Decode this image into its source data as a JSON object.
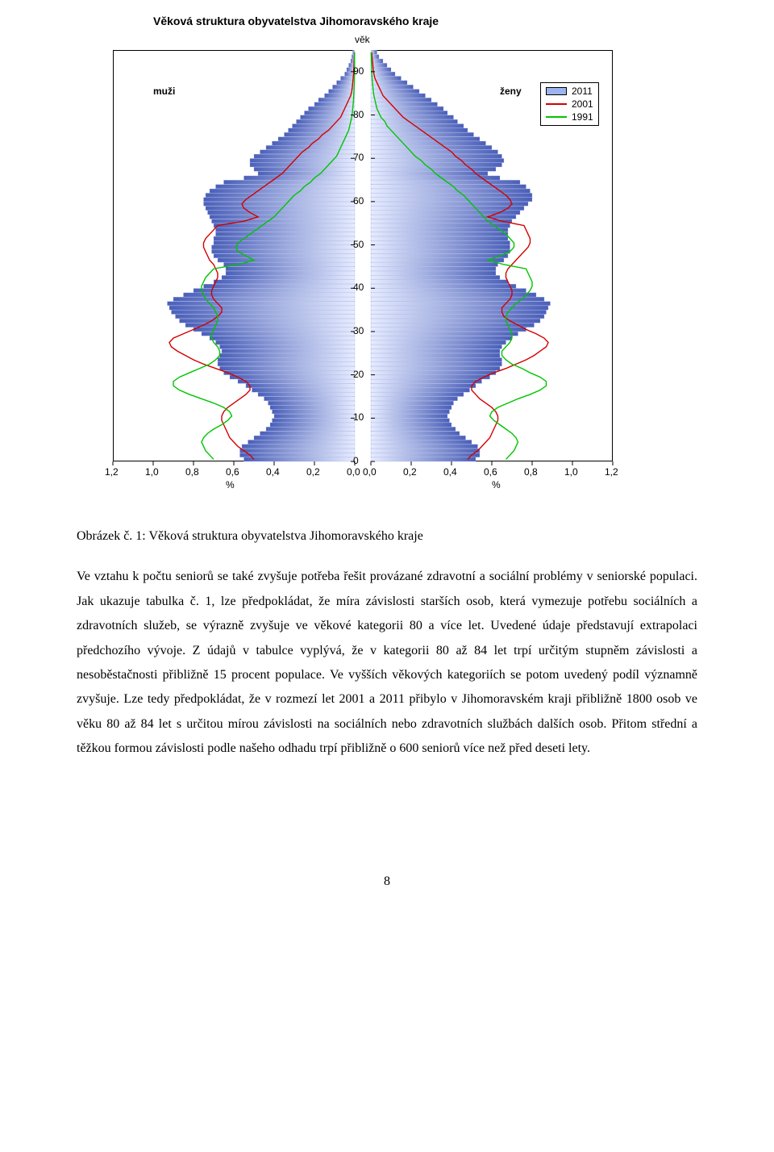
{
  "chart": {
    "type": "population-pyramid",
    "title": "Věková struktura obyvatelstva Jihomoravského kraje",
    "y_axis_label": "věk",
    "x_axis_label": "%",
    "left_label": "muži",
    "right_label": "ženy",
    "frame_color": "#000000",
    "background_color": "#ffffff",
    "bar_fill": "#4a5fb8",
    "bar_stroke": "#a7b4e6",
    "grad_light": "#e6ecff",
    "line_2001_color": "#d40000",
    "line_1991_color": "#00c400",
    "axis_font": "Arial",
    "axis_fontsize": 12,
    "title_fontsize": 14,
    "y_ticks": [
      0,
      10,
      20,
      30,
      40,
      50,
      60,
      70,
      80,
      90
    ],
    "x_ticks_left": [
      "1,2",
      "1,0",
      "0,8",
      "0,6",
      "0,4",
      "0,2",
      "0,0"
    ],
    "x_ticks_right": [
      "0,0",
      "0,2",
      "0,4",
      "0,6",
      "0,8",
      "1,0",
      "1,2"
    ],
    "xmax": 1.2,
    "age_min": 0,
    "age_max": 95,
    "line_width": 1.4,
    "legend": {
      "items": [
        {
          "label": "2011",
          "kind": "rect",
          "color": "#9bb4ef"
        },
        {
          "label": "2001",
          "kind": "line",
          "color": "#d40000"
        },
        {
          "label": "1991",
          "kind": "line",
          "color": "#00c400"
        }
      ]
    },
    "male_2011": [
      0.55,
      0.57,
      0.57,
      0.56,
      0.53,
      0.5,
      0.47,
      0.44,
      0.42,
      0.41,
      0.4,
      0.41,
      0.42,
      0.43,
      0.45,
      0.48,
      0.51,
      0.54,
      0.58,
      0.62,
      0.65,
      0.67,
      0.68,
      0.68,
      0.67,
      0.66,
      0.67,
      0.69,
      0.72,
      0.76,
      0.8,
      0.84,
      0.87,
      0.89,
      0.91,
      0.92,
      0.93,
      0.9,
      0.85,
      0.8,
      0.75,
      0.7,
      0.66,
      0.64,
      0.64,
      0.65,
      0.68,
      0.7,
      0.71,
      0.71,
      0.7,
      0.7,
      0.69,
      0.69,
      0.7,
      0.71,
      0.72,
      0.73,
      0.74,
      0.75,
      0.75,
      0.74,
      0.72,
      0.69,
      0.65,
      0.55,
      0.48,
      0.5,
      0.52,
      0.52,
      0.5,
      0.47,
      0.44,
      0.41,
      0.38,
      0.35,
      0.33,
      0.31,
      0.29,
      0.27,
      0.25,
      0.23,
      0.2,
      0.18,
      0.15,
      0.13,
      0.11,
      0.09,
      0.07,
      0.05,
      0.04,
      0.03,
      0.02,
      0.015,
      0.01
    ],
    "female_2011": [
      0.52,
      0.54,
      0.54,
      0.53,
      0.5,
      0.47,
      0.44,
      0.42,
      0.4,
      0.39,
      0.38,
      0.39,
      0.4,
      0.41,
      0.43,
      0.46,
      0.49,
      0.52,
      0.55,
      0.59,
      0.62,
      0.64,
      0.65,
      0.65,
      0.64,
      0.64,
      0.65,
      0.67,
      0.7,
      0.73,
      0.77,
      0.81,
      0.84,
      0.86,
      0.87,
      0.88,
      0.89,
      0.86,
      0.82,
      0.77,
      0.72,
      0.68,
      0.64,
      0.62,
      0.62,
      0.63,
      0.66,
      0.68,
      0.69,
      0.69,
      0.69,
      0.68,
      0.68,
      0.68,
      0.69,
      0.7,
      0.72,
      0.74,
      0.76,
      0.78,
      0.8,
      0.8,
      0.79,
      0.77,
      0.74,
      0.64,
      0.58,
      0.62,
      0.65,
      0.66,
      0.65,
      0.63,
      0.6,
      0.57,
      0.54,
      0.51,
      0.48,
      0.46,
      0.43,
      0.41,
      0.38,
      0.36,
      0.33,
      0.3,
      0.27,
      0.24,
      0.21,
      0.18,
      0.15,
      0.12,
      0.1,
      0.08,
      0.06,
      0.04,
      0.03
    ],
    "male_2001": [
      0.5,
      0.52,
      0.55,
      0.58,
      0.6,
      0.62,
      0.63,
      0.64,
      0.65,
      0.66,
      0.66,
      0.65,
      0.63,
      0.6,
      0.57,
      0.54,
      0.52,
      0.52,
      0.54,
      0.58,
      0.63,
      0.69,
      0.75,
      0.8,
      0.84,
      0.88,
      0.91,
      0.92,
      0.9,
      0.85,
      0.8,
      0.75,
      0.71,
      0.68,
      0.66,
      0.66,
      0.68,
      0.7,
      0.71,
      0.71,
      0.7,
      0.69,
      0.68,
      0.68,
      0.69,
      0.7,
      0.72,
      0.73,
      0.74,
      0.75,
      0.75,
      0.74,
      0.72,
      0.7,
      0.68,
      0.55,
      0.48,
      0.52,
      0.55,
      0.56,
      0.54,
      0.51,
      0.48,
      0.45,
      0.42,
      0.39,
      0.36,
      0.34,
      0.32,
      0.3,
      0.28,
      0.26,
      0.23,
      0.21,
      0.18,
      0.16,
      0.13,
      0.11,
      0.09,
      0.07,
      0.06,
      0.05,
      0.04,
      0.03,
      0.02,
      0.015,
      0.012,
      0.01,
      0.008,
      0.006,
      0.005,
      0.004,
      0.003,
      0.002,
      0.001
    ],
    "female_2001": [
      0.48,
      0.5,
      0.53,
      0.55,
      0.57,
      0.59,
      0.6,
      0.61,
      0.62,
      0.63,
      0.63,
      0.62,
      0.6,
      0.57,
      0.54,
      0.52,
      0.5,
      0.5,
      0.52,
      0.56,
      0.61,
      0.67,
      0.72,
      0.77,
      0.81,
      0.84,
      0.87,
      0.88,
      0.86,
      0.82,
      0.77,
      0.73,
      0.69,
      0.66,
      0.65,
      0.65,
      0.67,
      0.69,
      0.7,
      0.7,
      0.69,
      0.68,
      0.67,
      0.67,
      0.68,
      0.7,
      0.72,
      0.74,
      0.76,
      0.78,
      0.79,
      0.79,
      0.78,
      0.77,
      0.76,
      0.65,
      0.58,
      0.64,
      0.68,
      0.7,
      0.69,
      0.67,
      0.64,
      0.61,
      0.58,
      0.55,
      0.52,
      0.5,
      0.47,
      0.45,
      0.42,
      0.4,
      0.37,
      0.34,
      0.31,
      0.28,
      0.25,
      0.22,
      0.19,
      0.16,
      0.14,
      0.12,
      0.1,
      0.08,
      0.06,
      0.05,
      0.04,
      0.03,
      0.02,
      0.015,
      0.012,
      0.01,
      0.008,
      0.006,
      0.004
    ],
    "male_1991": [
      0.7,
      0.72,
      0.74,
      0.75,
      0.76,
      0.75,
      0.73,
      0.7,
      0.66,
      0.63,
      0.61,
      0.62,
      0.65,
      0.7,
      0.76,
      0.82,
      0.87,
      0.9,
      0.9,
      0.87,
      0.82,
      0.77,
      0.72,
      0.69,
      0.67,
      0.67,
      0.68,
      0.7,
      0.71,
      0.71,
      0.7,
      0.69,
      0.68,
      0.68,
      0.69,
      0.7,
      0.72,
      0.74,
      0.75,
      0.76,
      0.76,
      0.75,
      0.74,
      0.72,
      0.7,
      0.58,
      0.5,
      0.54,
      0.58,
      0.59,
      0.58,
      0.55,
      0.52,
      0.49,
      0.46,
      0.43,
      0.4,
      0.38,
      0.36,
      0.34,
      0.32,
      0.3,
      0.27,
      0.25,
      0.22,
      0.2,
      0.17,
      0.15,
      0.13,
      0.11,
      0.09,
      0.08,
      0.07,
      0.06,
      0.05,
      0.04,
      0.03,
      0.025,
      0.02,
      0.015,
      0.012,
      0.01,
      0.008,
      0.006,
      0.005,
      0.004,
      0.003,
      0.002,
      0.002,
      0.001,
      0.001,
      0.001,
      0.001,
      0.001,
      0.001
    ],
    "female_1991": [
      0.67,
      0.69,
      0.71,
      0.72,
      0.73,
      0.72,
      0.7,
      0.67,
      0.64,
      0.61,
      0.59,
      0.6,
      0.63,
      0.68,
      0.73,
      0.79,
      0.84,
      0.87,
      0.87,
      0.84,
      0.79,
      0.75,
      0.7,
      0.67,
      0.65,
      0.65,
      0.67,
      0.69,
      0.7,
      0.7,
      0.69,
      0.68,
      0.67,
      0.67,
      0.68,
      0.7,
      0.72,
      0.75,
      0.77,
      0.79,
      0.8,
      0.8,
      0.79,
      0.78,
      0.77,
      0.66,
      0.58,
      0.64,
      0.69,
      0.71,
      0.71,
      0.69,
      0.67,
      0.64,
      0.61,
      0.58,
      0.56,
      0.54,
      0.52,
      0.5,
      0.48,
      0.46,
      0.43,
      0.41,
      0.38,
      0.35,
      0.32,
      0.3,
      0.27,
      0.25,
      0.22,
      0.2,
      0.18,
      0.16,
      0.14,
      0.12,
      0.1,
      0.08,
      0.07,
      0.05,
      0.04,
      0.03,
      0.025,
      0.02,
      0.015,
      0.012,
      0.01,
      0.008,
      0.006,
      0.005,
      0.004,
      0.003,
      0.002,
      0.002,
      0.001
    ]
  },
  "caption": "Obrázek č. 1: Věková struktura obyvatelstva Jihomoravského kraje",
  "body_paragraph": "Ve vztahu k počtu seniorů se také zvyšuje potřeba řešit provázané zdravotní a sociální problémy v seniorské populaci. Jak ukazuje tabulka č. 1, lze předpokládat, že míra závislosti starších osob, která vymezuje potřebu sociálních a zdravotních služeb, se výrazně zvyšuje ve věkové kategorii 80 a více let. Uvedené údaje představují extrapolaci předchozího vývoje. Z údajů v tabulce vyplývá, že v kategorii 80 až 84 let trpí určitým stupněm závislosti a nesoběstačnosti přibližně 15 procent populace. Ve vyšších věkových kategoriích se potom uvedený podíl významně zvyšuje. Lze tedy předpokládat, že v rozmezí let 2001 a 2011 přibylo v Jihomoravském kraji přibližně 1800 osob ve věku 80 až 84 let s určitou mírou závislosti na sociálních nebo zdravotních službách dalších osob. Přitom střední a těžkou formou závislosti podle našeho odhadu trpí přibližně o 600 seniorů více než před deseti lety.",
  "page_number": "8"
}
